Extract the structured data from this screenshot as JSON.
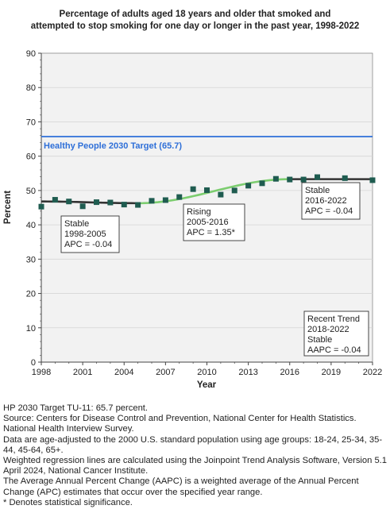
{
  "title_lines": [
    "Percentage of adults aged 18 years and older that smoked and",
    "attempted to stop smoking for one day or longer in the past year, 1998-2022"
  ],
  "chart_data": {
    "type": "scatter",
    "xlabel": "Year",
    "ylabel": "Percent",
    "xlim": [
      1998,
      2022
    ],
    "ylim": [
      0,
      90
    ],
    "x_ticks": [
      1998,
      2001,
      2004,
      2007,
      2010,
      2013,
      2016,
      2019,
      2022
    ],
    "y_ticks": [
      0,
      10,
      20,
      30,
      40,
      50,
      60,
      70,
      80,
      90
    ],
    "grid": true,
    "target": {
      "label": "Healthy People 2030 Target (65.7)",
      "value": 65.7,
      "color": "#2e6fd8"
    },
    "observed": {
      "color": "#1f5c50",
      "x": [
        1998,
        1999,
        2000,
        2001,
        2002,
        2003,
        2004,
        2005,
        2006,
        2007,
        2008,
        2009,
        2010,
        2011,
        2012,
        2013,
        2014,
        2015,
        2016,
        2017,
        2018,
        2020,
        2022
      ],
      "y": [
        45.3,
        47.3,
        46.8,
        45.4,
        46.6,
        46.5,
        45.9,
        45.8,
        47.0,
        47.2,
        48.1,
        50.4,
        50.1,
        48.8,
        50.0,
        51.4,
        52.1,
        53.4,
        53.2,
        53.2,
        53.9,
        53.6,
        53.0
      ]
    },
    "trend_segments": [
      {
        "x": [
          1998,
          2005
        ],
        "y": [
          46.8,
          46.3
        ],
        "color": "#333333"
      },
      {
        "x": [
          2005,
          2016
        ],
        "y": [
          46.3,
          53.3
        ],
        "color": "#7ccd6f"
      },
      {
        "x": [
          2016,
          2022
        ],
        "y": [
          53.3,
          53.3
        ],
        "color": "#333333"
      }
    ],
    "annotations": [
      {
        "lines": [
          "Stable",
          "1998-2005",
          "APC = -0.04"
        ]
      },
      {
        "lines": [
          "Rising",
          "2005-2016",
          "APC =  1.35*"
        ]
      },
      {
        "lines": [
          "Stable",
          "2016-2022",
          "APC = -0.04"
        ]
      },
      {
        "lines": [
          "Recent Trend",
          "2018-2022",
          "Stable",
          "AAPC = -0.04"
        ]
      }
    ]
  },
  "notes": [
    "HP 2030 Target TU-11: 65.7 percent.",
    "Source: Centers for Disease Control and Prevention, National Center for Health Statistics. National Health Interview Survey.",
    "Data are age-adjusted to the 2000 U.S. standard population using age groups: 18-24, 25-34, 35-44, 45-64, 65+.",
    "Weighted regression lines are calculated using the Joinpoint Trend Analysis Software, Version 5.1 April 2024, National Cancer Institute.",
    "The Average Annual Percent Change (AAPC) is a weighted average of the Annual Percent Change (APC) estimates that occur over the specified year range.",
    "* Denotes statistical significance."
  ]
}
